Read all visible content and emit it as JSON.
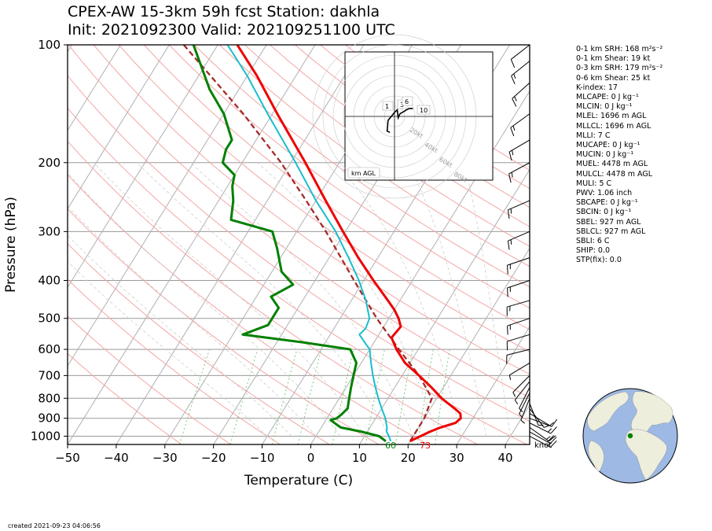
{
  "header": {
    "title_line1": "CPEX-AW 15-3km  59h fcst  Station: dakhla",
    "title_line2": "Init: 2021092300  Valid: 202109251100 UTC"
  },
  "footer": {
    "created": "created 2021-09-23 04:06:56"
  },
  "hodograph": {
    "label": "km AGL",
    "ring_labels": [
      "20kt",
      "40kt",
      "60kt",
      "80kt"
    ],
    "height_markers": [
      "1",
      "3",
      "6",
      "10"
    ],
    "trace_uv_kt": [
      [
        -5,
        -12
      ],
      [
        -8,
        -11
      ],
      [
        -7,
        -3
      ],
      [
        0,
        3
      ],
      [
        3,
        5
      ],
      [
        4,
        -1
      ],
      [
        6,
        2
      ],
      [
        11,
        4
      ],
      [
        13,
        5
      ],
      [
        16,
        6
      ],
      [
        20,
        6
      ]
    ]
  },
  "stats": [
    "0-1 km SRH: 168 m²s⁻²",
    "0-1 km Shear: 19 kt",
    "0-3 km SRH: 179 m²s⁻²",
    "0-6 km Shear: 25 kt",
    "K-index: 17",
    "MLCAPE: 0 J kg⁻¹",
    "MLCIN: 0 J kg⁻¹",
    "MLEL: 1696 m AGL",
    "MLLCL: 1696 m AGL",
    "MLLI: 7 C",
    "MUCAPE: 0 J kg⁻¹",
    "MUCIN: 0 J kg⁻¹",
    "MUEL: 4478 m AGL",
    "MULCL: 4478 m AGL",
    "MULI: 5 C",
    "PWV: 1.06 inch",
    "SBCAPE: 0 J kg⁻¹",
    "SBCIN: 0 J kg⁻¹",
    "SBEL: 927 m AGL",
    "SBLCL: 927 m AGL",
    "SBLI: 6 C",
    "SHIP: 0.0",
    "STP(fix): 0.0"
  ],
  "globe": {
    "station_marker_color": "#008000"
  },
  "chart_data": {
    "type": "line",
    "subtype": "skew-T log-p",
    "xlabel": "Temperature (C)",
    "ylabel": "Pressure (hPa)",
    "xlim": [
      -50,
      45
    ],
    "ylim": [
      1050,
      100
    ],
    "y_scale": "log",
    "x_ticks": [
      -50,
      -40,
      -30,
      -20,
      -10,
      0,
      10,
      20,
      30,
      40
    ],
    "y_ticks": [
      100,
      200,
      300,
      400,
      500,
      600,
      700,
      800,
      900,
      1000
    ],
    "surface_labels": {
      "dewpoint_f": "60",
      "temperature_f": "73"
    },
    "wind_unit_label": "knot",
    "colors": {
      "temperature": "#ee0000",
      "dewpoint": "#008000",
      "wetbulb": "#17becf",
      "parcel": "#a52a2a",
      "dry_adiabats": "#f4a6a6",
      "moist_adiabats": "#cfcfcf",
      "isotherms": "#b0b0b0",
      "mixing_ratio": "#7fc97f"
    },
    "series": [
      {
        "role": "temperature",
        "points": [
          [
            1030,
            20
          ],
          [
            1000,
            21.5
          ],
          [
            975,
            22.8
          ],
          [
            950,
            24.5
          ],
          [
            925,
            27
          ],
          [
            900,
            27.5
          ],
          [
            875,
            26.8
          ],
          [
            850,
            25
          ],
          [
            800,
            21
          ],
          [
            750,
            17.5
          ],
          [
            700,
            13.5
          ],
          [
            650,
            9
          ],
          [
            600,
            5.5
          ],
          [
            560,
            3
          ],
          [
            525,
            3.5
          ],
          [
            500,
            2
          ],
          [
            475,
            0
          ],
          [
            450,
            -2.5
          ],
          [
            400,
            -8
          ],
          [
            350,
            -14
          ],
          [
            300,
            -20.5
          ],
          [
            250,
            -28
          ],
          [
            200,
            -37
          ],
          [
            150,
            -49
          ],
          [
            120,
            -58
          ],
          [
            100,
            -66
          ]
        ]
      },
      {
        "role": "dewpoint",
        "points": [
          [
            1030,
            15
          ],
          [
            1000,
            13
          ],
          [
            975,
            9
          ],
          [
            950,
            4
          ],
          [
            930,
            2.5
          ],
          [
            910,
            1
          ],
          [
            900,
            2
          ],
          [
            880,
            2.5
          ],
          [
            850,
            3
          ],
          [
            800,
            2
          ],
          [
            750,
            1
          ],
          [
            700,
            0
          ],
          [
            650,
            -1
          ],
          [
            600,
            -4
          ],
          [
            575,
            -15
          ],
          [
            550,
            -28
          ],
          [
            520,
            -24
          ],
          [
            470,
            -24
          ],
          [
            440,
            -27
          ],
          [
            410,
            -24
          ],
          [
            380,
            -28
          ],
          [
            330,
            -32
          ],
          [
            300,
            -35
          ],
          [
            280,
            -45
          ],
          [
            250,
            -47
          ],
          [
            230,
            -49
          ],
          [
            215,
            -50
          ],
          [
            200,
            -54
          ],
          [
            185,
            -55
          ],
          [
            175,
            -55
          ],
          [
            150,
            -60
          ],
          [
            130,
            -66
          ],
          [
            100,
            -75
          ]
        ]
      },
      {
        "role": "wetbulb",
        "points": [
          [
            1030,
            16
          ],
          [
            1000,
            15
          ],
          [
            975,
            14
          ],
          [
            950,
            13.5
          ],
          [
            900,
            12
          ],
          [
            850,
            10
          ],
          [
            800,
            8
          ],
          [
            750,
            6
          ],
          [
            700,
            4
          ],
          [
            650,
            2
          ],
          [
            600,
            0
          ],
          [
            575,
            -2
          ],
          [
            550,
            -4
          ],
          [
            530,
            -3.5
          ],
          [
            500,
            -4
          ],
          [
            450,
            -7
          ],
          [
            400,
            -11
          ],
          [
            350,
            -16
          ],
          [
            300,
            -22
          ],
          [
            250,
            -30
          ],
          [
            200,
            -39
          ],
          [
            150,
            -51
          ],
          [
            120,
            -60
          ],
          [
            100,
            -68
          ]
        ]
      },
      {
        "role": "parcel",
        "points": [
          [
            1030,
            20
          ],
          [
            900,
            20
          ],
          [
            800,
            19
          ],
          [
            700,
            13.5
          ],
          [
            600,
            6
          ],
          [
            500,
            -2.5
          ],
          [
            400,
            -12
          ],
          [
            300,
            -24
          ],
          [
            250,
            -32
          ],
          [
            200,
            -42
          ],
          [
            150,
            -56
          ],
          [
            100,
            -77
          ]
        ]
      }
    ],
    "wind_barbs": [
      {
        "p": 1000,
        "u_kt": -15,
        "v_kt": 8
      },
      {
        "p": 975,
        "u_kt": -16,
        "v_kt": 9
      },
      {
        "p": 950,
        "u_kt": -14,
        "v_kt": 10
      },
      {
        "p": 925,
        "u_kt": -12,
        "v_kt": 6
      },
      {
        "p": 900,
        "u_kt": -8,
        "v_kt": 3
      },
      {
        "p": 875,
        "u_kt": -5,
        "v_kt": 3
      },
      {
        "p": 850,
        "u_kt": -3,
        "v_kt": 4
      },
      {
        "p": 825,
        "u_kt": -2,
        "v_kt": 5
      },
      {
        "p": 800,
        "u_kt": 2,
        "v_kt": 5
      },
      {
        "p": 775,
        "u_kt": 3,
        "v_kt": 6
      },
      {
        "p": 750,
        "u_kt": 3,
        "v_kt": 6
      },
      {
        "p": 725,
        "u_kt": 4,
        "v_kt": 5
      },
      {
        "p": 700,
        "u_kt": 4,
        "v_kt": 4
      },
      {
        "p": 650,
        "u_kt": 5,
        "v_kt": 3
      },
      {
        "p": 600,
        "u_kt": 8,
        "v_kt": 2
      },
      {
        "p": 550,
        "u_kt": 10,
        "v_kt": 3
      },
      {
        "p": 500,
        "u_kt": 12,
        "v_kt": 4
      },
      {
        "p": 450,
        "u_kt": 14,
        "v_kt": 4
      },
      {
        "p": 400,
        "u_kt": 15,
        "v_kt": 5
      },
      {
        "p": 350,
        "u_kt": 15,
        "v_kt": 5
      },
      {
        "p": 300,
        "u_kt": 14,
        "v_kt": 6
      },
      {
        "p": 250,
        "u_kt": 14,
        "v_kt": 6
      },
      {
        "p": 200,
        "u_kt": 13,
        "v_kt": 7
      },
      {
        "p": 175,
        "u_kt": 12,
        "v_kt": 7
      },
      {
        "p": 150,
        "u_kt": 11,
        "v_kt": 8
      },
      {
        "p": 125,
        "u_kt": 10,
        "v_kt": 9
      },
      {
        "p": 110,
        "u_kt": 10,
        "v_kt": 8
      },
      {
        "p": 100,
        "u_kt": 9,
        "v_kt": 7
      }
    ]
  }
}
